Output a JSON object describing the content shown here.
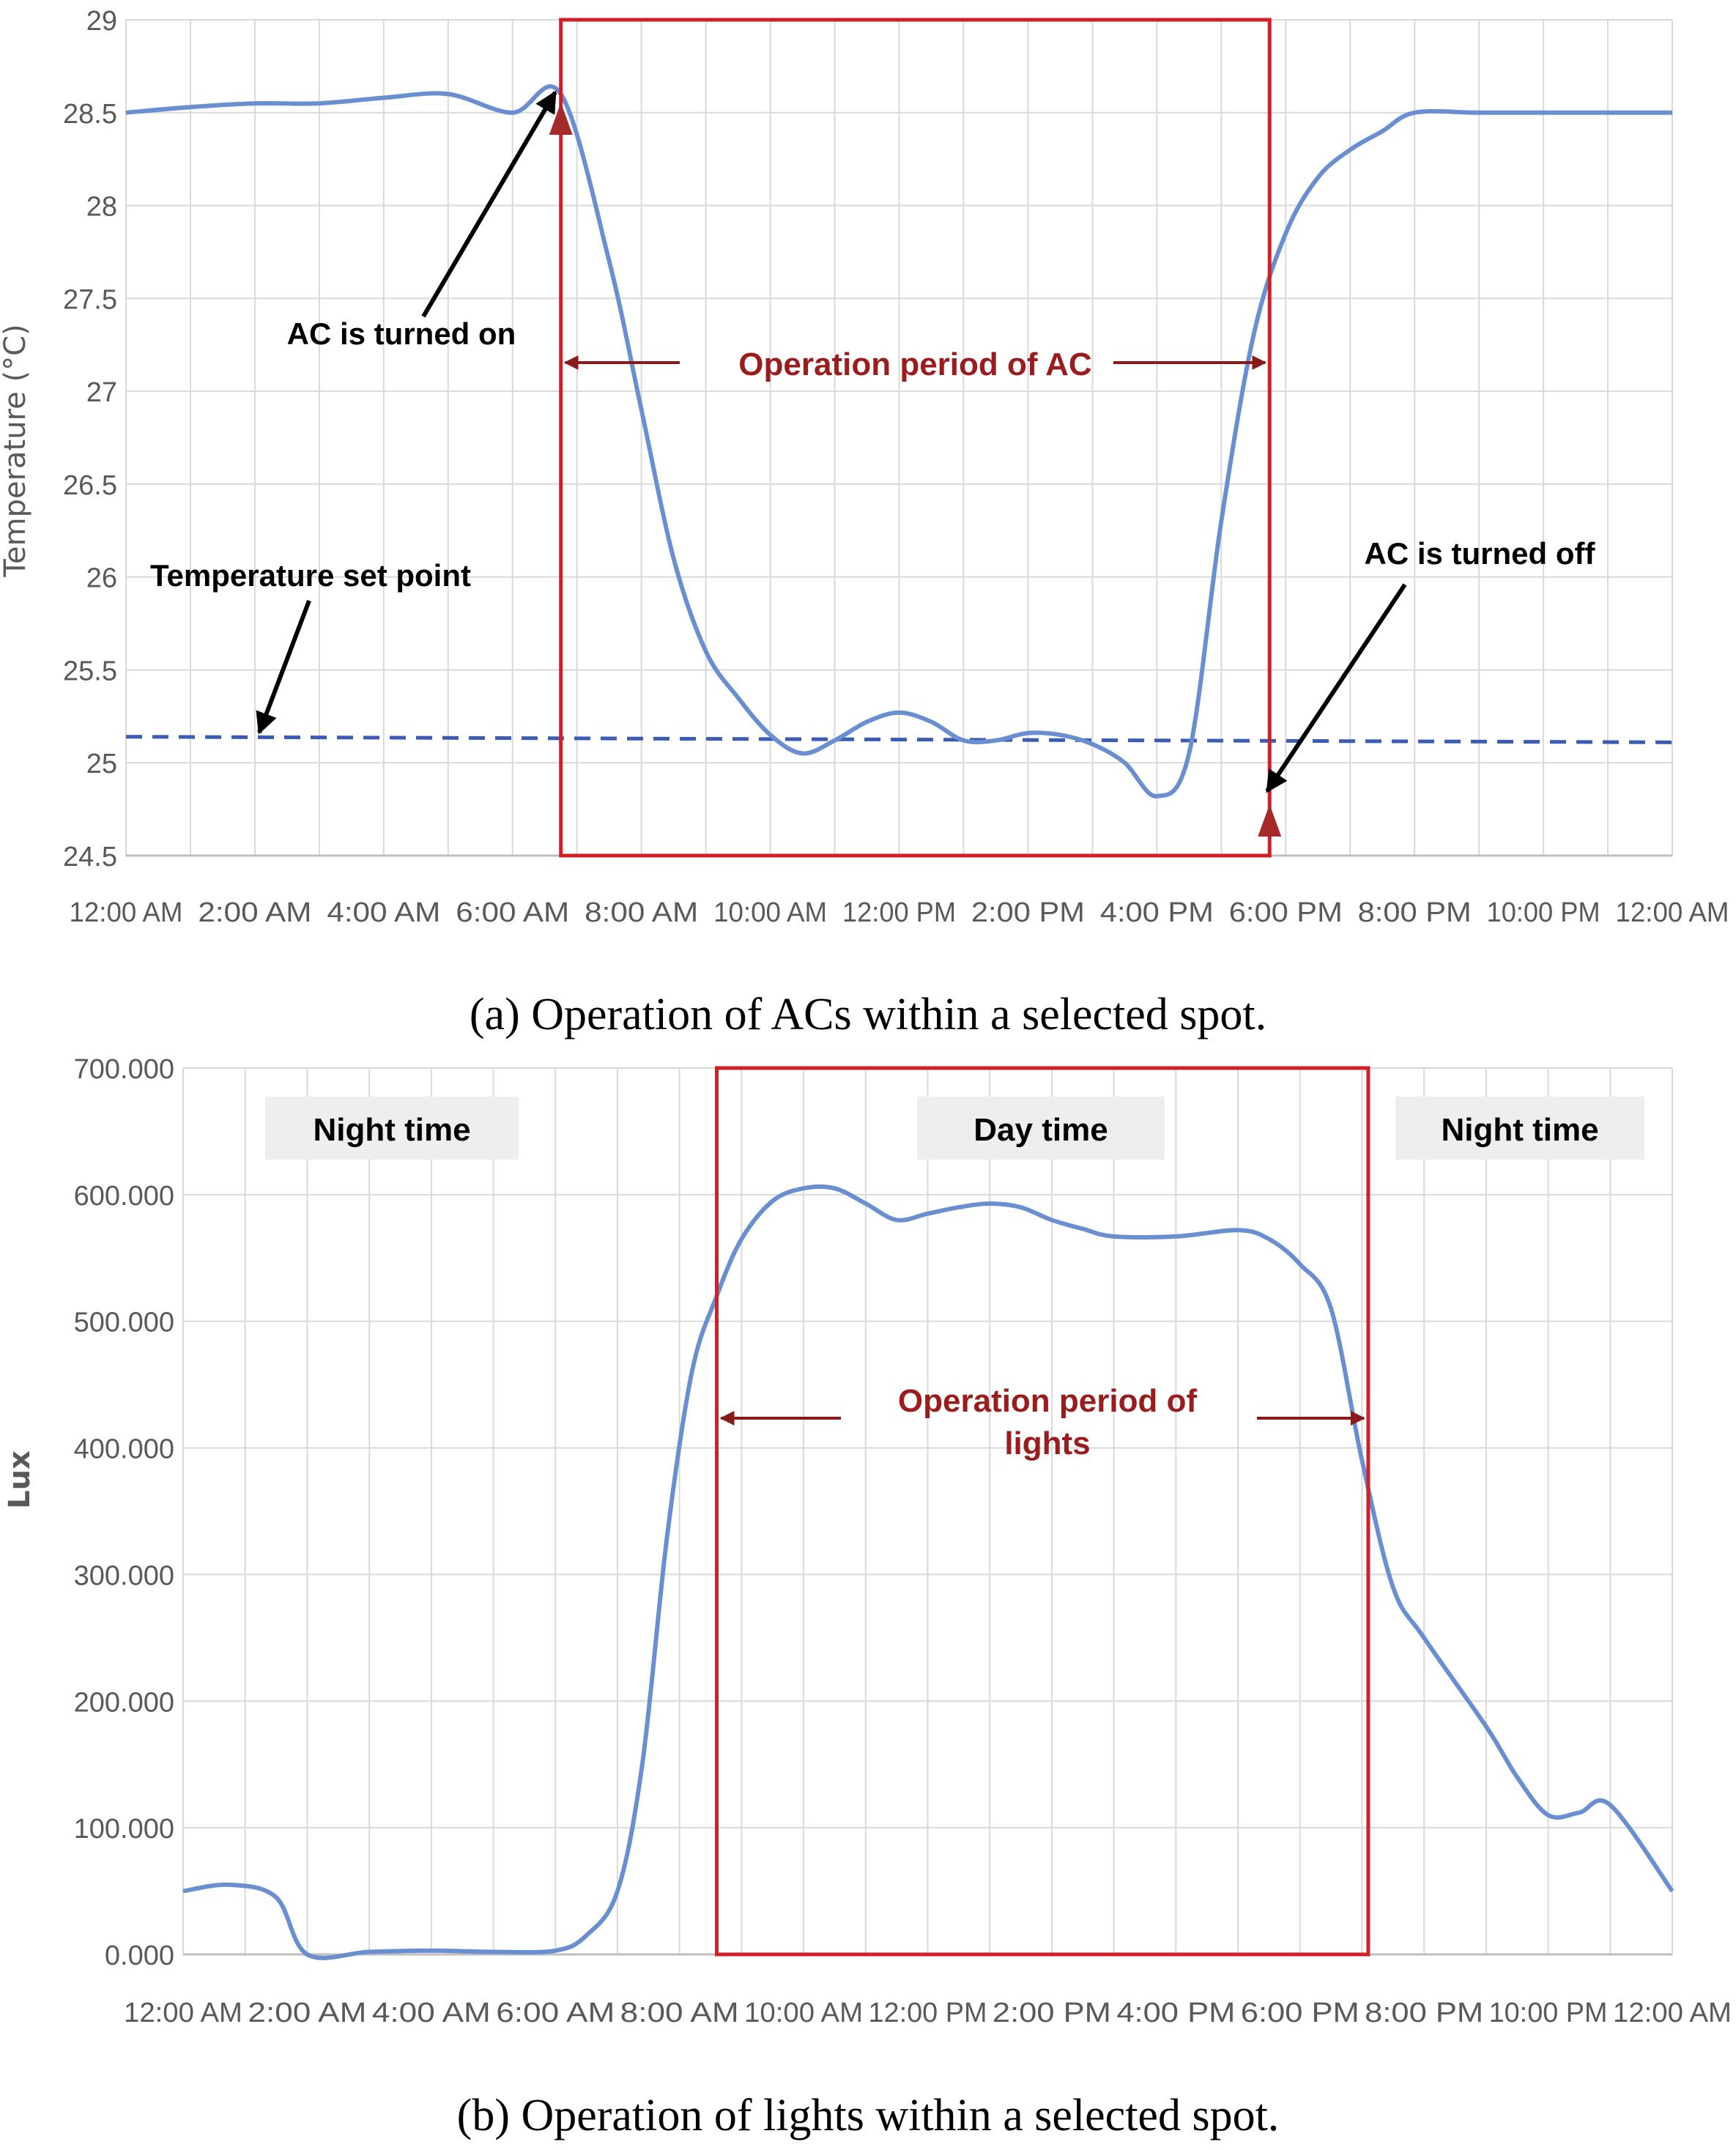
{
  "chart_data": [
    {
      "type": "line",
      "ylabel": "Temperature (°C)",
      "xlabel": "",
      "ylim": [
        24.5,
        29
      ],
      "yticks": [
        "24.5",
        "25",
        "25.5",
        "26",
        "26.5",
        "27",
        "27.5",
        "28",
        "28.5",
        "29"
      ],
      "xlim_hours": [
        0,
        24
      ],
      "grid": true,
      "categories": [
        "12:00 AM",
        "2:00 AM",
        "4:00 AM",
        "6:00 AM",
        "8:00 AM",
        "10:00 AM",
        "12:00 PM",
        "2:00 PM",
        "4:00 PM",
        "6:00 PM",
        "8:00 PM",
        "10:00 PM",
        "12:00 AM"
      ],
      "series": [
        {
          "x": [
            0,
            1,
            2,
            3,
            4,
            5,
            6,
            6.75,
            7.5,
            8,
            8.5,
            9,
            9.5,
            10,
            10.5,
            11,
            11.5,
            12,
            12.5,
            13,
            13.5,
            14,
            14.5,
            15,
            15.5,
            16,
            16.5,
            17,
            17.5,
            18,
            18.5,
            19,
            19.5,
            20,
            21,
            22,
            23,
            24
          ],
          "values": [
            28.5,
            28.53,
            28.55,
            28.55,
            28.58,
            28.6,
            28.5,
            28.6,
            27.7,
            26.9,
            26.1,
            25.6,
            25.35,
            25.15,
            25.05,
            25.12,
            25.22,
            25.27,
            25.22,
            25.12,
            25.12,
            25.16,
            25.15,
            25.1,
            25.0,
            24.82,
            25.05,
            26.3,
            27.3,
            27.85,
            28.15,
            28.3,
            28.4,
            28.5,
            28.5,
            28.5,
            28.5,
            28.5
          ],
          "color": "#6a8fd0"
        },
        {
          "x": [
            0,
            24
          ],
          "values": [
            25.14,
            25.11
          ],
          "style": "dashed",
          "color": "#3c5bb3"
        }
      ],
      "annotations": {
        "ac_on": "AC is turned on",
        "ac_off": "AC is turned off",
        "set_point": "Temperature set point",
        "period": "Operation period of AC"
      },
      "operation_period_hours": [
        6.75,
        17.75
      ],
      "caption": "(a) Operation of ACs within a selected spot."
    },
    {
      "type": "line",
      "ylabel": "Lux",
      "xlabel": "",
      "ylim": [
        0,
        700
      ],
      "yticks": [
        "0.000",
        "100.000",
        "200.000",
        "300.000",
        "400.000",
        "500.000",
        "600.000",
        "700.000"
      ],
      "xlim_hours": [
        0,
        24
      ],
      "grid": true,
      "categories": [
        "12:00 AM",
        "2:00 AM",
        "4:00 AM",
        "6:00 AM",
        "8:00 AM",
        "10:00 AM",
        "12:00 PM",
        "2:00 PM",
        "4:00 PM",
        "6:00 PM",
        "8:00 PM",
        "10:00 PM",
        "12:00 AM"
      ],
      "series": [
        {
          "x": [
            0,
            0.75,
            1.5,
            2,
            3,
            4,
            5,
            6,
            6.5,
            7,
            7.4,
            7.8,
            8.2,
            8.6,
            9,
            9.5,
            10,
            10.5,
            11,
            11.5,
            12,
            12.5,
            13,
            13.5,
            14,
            14.5,
            15,
            16,
            17,
            17.5,
            18,
            18.5,
            19,
            19.5,
            20,
            21,
            21.5,
            22,
            22.5,
            23,
            24
          ],
          "values": [
            50,
            55,
            45,
            0,
            2,
            3,
            2,
            3,
            15,
            50,
            150,
            330,
            460,
            520,
            565,
            595,
            605,
            605,
            593,
            580,
            585,
            590,
            593,
            590,
            580,
            573,
            567,
            567,
            572,
            565,
            545,
            510,
            390,
            290,
            250,
            180,
            140,
            110,
            112,
            118,
            50
          ],
          "color": "#6a8fd0"
        }
      ],
      "annotations": {
        "night_left": "Night time",
        "day": "Day time",
        "night_right": "Night time",
        "period_line1": "Operation period of",
        "period_line2": "lights"
      },
      "operation_period_hours": [
        8.6,
        19.1
      ],
      "caption": "(b) Operation of lights within a selected spot."
    }
  ]
}
